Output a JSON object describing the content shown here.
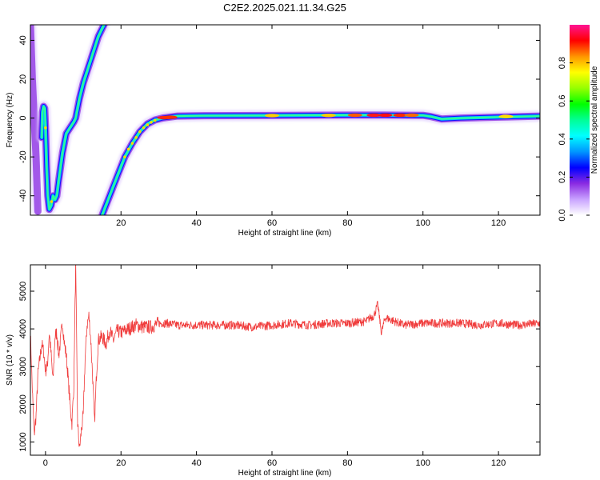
{
  "chart_data": [
    {
      "type": "heatmap",
      "title": "C2E2.2025.021.11.34.G25",
      "xlabel": "Height of straight line (km)",
      "ylabel": "Frequency (Hz)",
      "xlim": [
        -4,
        131
      ],
      "ylim": [
        -50,
        48
      ],
      "xticks": [
        20,
        40,
        60,
        80,
        100,
        120
      ],
      "yticks": [
        -40,
        -20,
        0,
        20,
        40
      ],
      "colorbar": {
        "label": "Normalized spectral amplitude",
        "range": [
          0,
          1
        ],
        "ticks": [
          "0.0",
          "0.2",
          "0.4",
          "0.6",
          "0.8"
        ],
        "colors": [
          "#ffffff",
          "#c9a3ff",
          "#8a2be2",
          "#0000ff",
          "#0096ff",
          "#00ffff",
          "#00ff96",
          "#00ff00",
          "#96ff00",
          "#ffff00",
          "#ff9600",
          "#ff0000",
          "#ff1493"
        ]
      },
      "traces": [
        {
          "name": "",
          "points": [
            [
              -4,
              48
            ],
            [
              -3.5,
              20
            ],
            [
              -3,
              0
            ],
            [
              -2.5,
              -20
            ],
            [
              -2,
              -48
            ]
          ],
          "amplitude": 0.15
        },
        {
          "name": "",
          "points": [
            [
              -1,
              -10
            ],
            [
              -0.8,
              3
            ],
            [
              -0.5,
              6
            ],
            [
              -0.2,
              5
            ],
            [
              0,
              -5
            ],
            [
              0.3,
              -25
            ],
            [
              0.6,
              -40
            ],
            [
              1,
              -47
            ],
            [
              1.5,
              -45
            ],
            [
              2,
              -40
            ],
            [
              2.5,
              -42
            ],
            [
              3,
              -40
            ],
            [
              3.5,
              -32
            ],
            [
              4.5,
              -18
            ],
            [
              5.5,
              -8
            ],
            [
              6.5,
              -5
            ],
            [
              7.5,
              -2
            ],
            [
              8,
              0
            ],
            [
              9,
              10
            ],
            [
              10,
              18
            ],
            [
              11,
              24
            ],
            [
              12,
              30
            ],
            [
              13,
              36
            ],
            [
              14,
              42
            ],
            [
              15.5,
              48
            ]
          ],
          "amplitude": 0.45
        },
        {
          "name": "",
          "points": [
            [
              15,
              -50
            ],
            [
              17,
              -40
            ],
            [
              19,
              -30
            ],
            [
              21,
              -20
            ],
            [
              23,
              -13
            ],
            [
              25,
              -7
            ],
            [
              27,
              -3
            ],
            [
              29,
              -1
            ],
            [
              31,
              0
            ],
            [
              35,
              1
            ],
            [
              40,
              1.2
            ],
            [
              60,
              1.3
            ],
            [
              80,
              1.5
            ],
            [
              90,
              1.5
            ],
            [
              100,
              1.4
            ],
            [
              102,
              0.8
            ],
            [
              105,
              -0.5
            ],
            [
              110,
              0
            ],
            [
              120,
              0.5
            ],
            [
              131,
              1
            ]
          ],
          "amplitude": 0.55
        }
      ]
    },
    {
      "type": "line",
      "xlabel": "Height of straight line (km)",
      "ylabel": "SNR (10 * v/v)",
      "xlim": [
        -4,
        131
      ],
      "ylim": [
        650,
        5700
      ],
      "xticks": [
        0,
        20,
        40,
        60,
        80,
        100,
        120
      ],
      "yticks": [
        1000,
        2000,
        3000,
        4000,
        5000
      ],
      "line_color": "#f03c3c",
      "series": [
        {
          "name": "",
          "x": [
            -4,
            -3.5,
            -3,
            -2.5,
            -2,
            -1.5,
            -1,
            -0.5,
            0,
            0.5,
            1,
            1.5,
            2,
            2.5,
            3,
            3.5,
            4,
            4.5,
            5,
            5.5,
            6,
            6.5,
            7,
            7.5,
            8,
            8.5,
            9,
            9.5,
            10,
            10.5,
            11,
            11.5,
            12,
            12.5,
            13,
            13.5,
            14,
            15,
            16,
            17,
            18,
            19,
            20,
            22,
            24,
            26,
            28,
            30,
            32,
            35,
            40,
            45,
            50,
            55,
            60,
            65,
            70,
            75,
            80,
            85,
            86,
            87,
            88,
            89,
            90,
            95,
            100,
            105,
            110,
            115,
            120,
            125,
            131
          ],
          "y": [
            3900,
            2400,
            1200,
            1700,
            2800,
            3200,
            3600,
            3400,
            2900,
            3000,
            3900,
            3300,
            2600,
            3800,
            3900,
            3300,
            3700,
            4200,
            3600,
            3300,
            2700,
            2000,
            1500,
            2500,
            5700,
            1500,
            800,
            1300,
            1700,
            3200,
            4100,
            4350,
            3700,
            2700,
            1500,
            2800,
            3700,
            3800,
            3600,
            3950,
            3700,
            3950,
            3900,
            4000,
            4100,
            4050,
            4050,
            4150,
            4150,
            4100,
            4100,
            4100,
            4100,
            4050,
            4100,
            4150,
            4100,
            4150,
            4150,
            4200,
            4300,
            4350,
            4650,
            3900,
            4300,
            4100,
            4150,
            4150,
            4150,
            4100,
            4150,
            4100,
            4150
          ]
        }
      ]
    }
  ]
}
